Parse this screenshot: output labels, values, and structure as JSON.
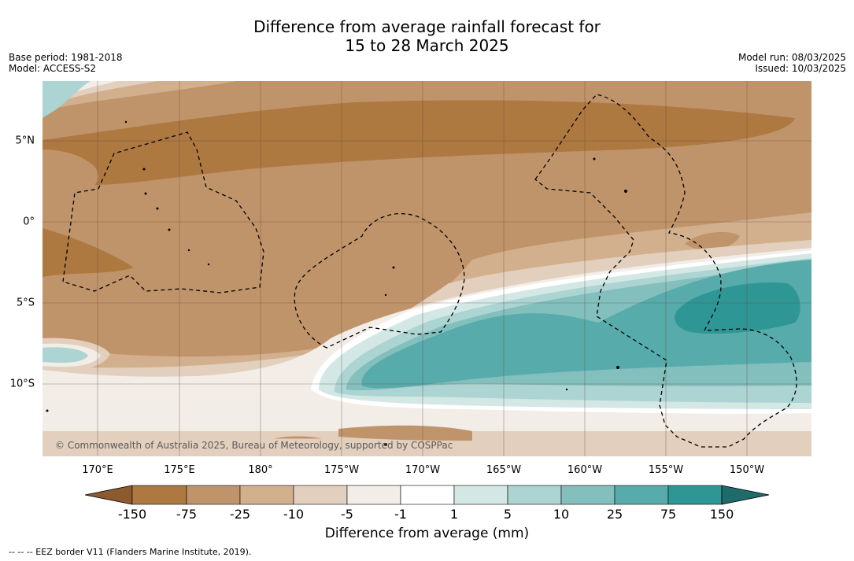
{
  "title_line1": "Difference from average rainfall forecast for",
  "title_line2": "15 to 28 March 2025",
  "base_period": "Base period: 1981-2018",
  "model": "Model: ACCESS-S2",
  "model_run": "Model run: 08/03/2025",
  "issued": "Issued: 10/03/2025",
  "copyright": "© Commonwealth of Australia 2025, Bureau of Meteorology, supported by COSPPac",
  "lon_labels": [
    "170°E",
    "175°E",
    "180°",
    "175°W",
    "170°W",
    "165°W",
    "160°W",
    "155°W",
    "150°W"
  ],
  "lat_labels": [
    "5°N",
    "0°",
    "5°S",
    "10°S"
  ],
  "legend": {
    "title": "Difference from average (mm)",
    "ticks": [
      "-150",
      "-75",
      "-25",
      "-10",
      "-5",
      "-1",
      "1",
      "5",
      "10",
      "25",
      "75",
      "150"
    ],
    "colors": [
      "#8d5a30",
      "#ae7841",
      "#c0946a",
      "#d2b08e",
      "#e3cfbd",
      "#f2ede7",
      "#ffffff",
      "#d3e7e5",
      "#acd4d2",
      "#82bfbd",
      "#58abab",
      "#2e9795",
      "#1f6b69"
    ]
  },
  "footer": "--  --  -- EEZ border V11 (Flanders Marine Institute, 2019)."
}
